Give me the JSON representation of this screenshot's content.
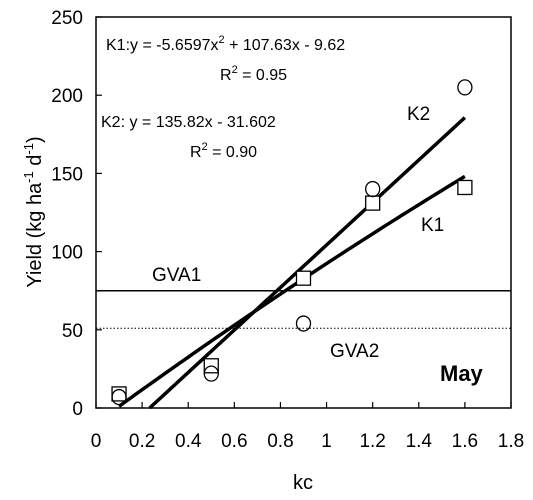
{
  "chart_data": {
    "type": "scatter",
    "xlabel": "kc",
    "ylabel_main": "Yield (kg ha",
    "ylabel_sup1": "-1",
    "ylabel_mid": " d",
    "ylabel_sup2": "-1",
    "ylabel_end": ")",
    "xlim": [
      0,
      1.8
    ],
    "ylim": [
      0,
      250
    ],
    "x_ticks": [
      "0",
      "0.2",
      "0.4",
      "0.6",
      "0.8",
      "1",
      "1.2",
      "1.4",
      "1.6",
      "1.8"
    ],
    "y_ticks": [
      "0",
      "50",
      "100",
      "150",
      "200",
      "250"
    ],
    "grid": false,
    "panel_label": "May",
    "series": [
      {
        "name": "K1",
        "marker": "square",
        "points": [
          {
            "x": 0.1,
            "y": 9
          },
          {
            "x": 0.5,
            "y": 27
          },
          {
            "x": 0.9,
            "y": 83
          },
          {
            "x": 1.2,
            "y": 131
          },
          {
            "x": 1.6,
            "y": 141
          }
        ],
        "fit": {
          "type": "quadratic",
          "a": -5.6597,
          "b": 107.63,
          "c": -9.62,
          "x_range": [
            0.1,
            1.6
          ]
        },
        "equation_text": "K1:y = -5.6597x",
        "equation_sup": "2",
        "equation_rest": " + 107.63x - 9.62",
        "r2_text": "R",
        "r2_sup": "2",
        "r2_rest": " = 0.95"
      },
      {
        "name": "K2",
        "marker": "circle",
        "points": [
          {
            "x": 0.1,
            "y": 7
          },
          {
            "x": 0.5,
            "y": 22
          },
          {
            "x": 0.9,
            "y": 54
          },
          {
            "x": 1.2,
            "y": 140
          },
          {
            "x": 1.6,
            "y": 205
          }
        ],
        "fit": {
          "type": "linear",
          "slope": 135.82,
          "intercept": -31.602,
          "x_range": [
            0.233,
            1.6
          ]
        },
        "equation_text": "K2: y = 135.82x - 31.602",
        "r2_text": "R",
        "r2_sup": "2",
        "r2_rest": " = 0.90"
      }
    ],
    "reference_lines": [
      {
        "name": "GVA1",
        "y": 75,
        "style": "solid"
      },
      {
        "name": "GVA2",
        "y": 51,
        "style": "dotted"
      }
    ]
  }
}
